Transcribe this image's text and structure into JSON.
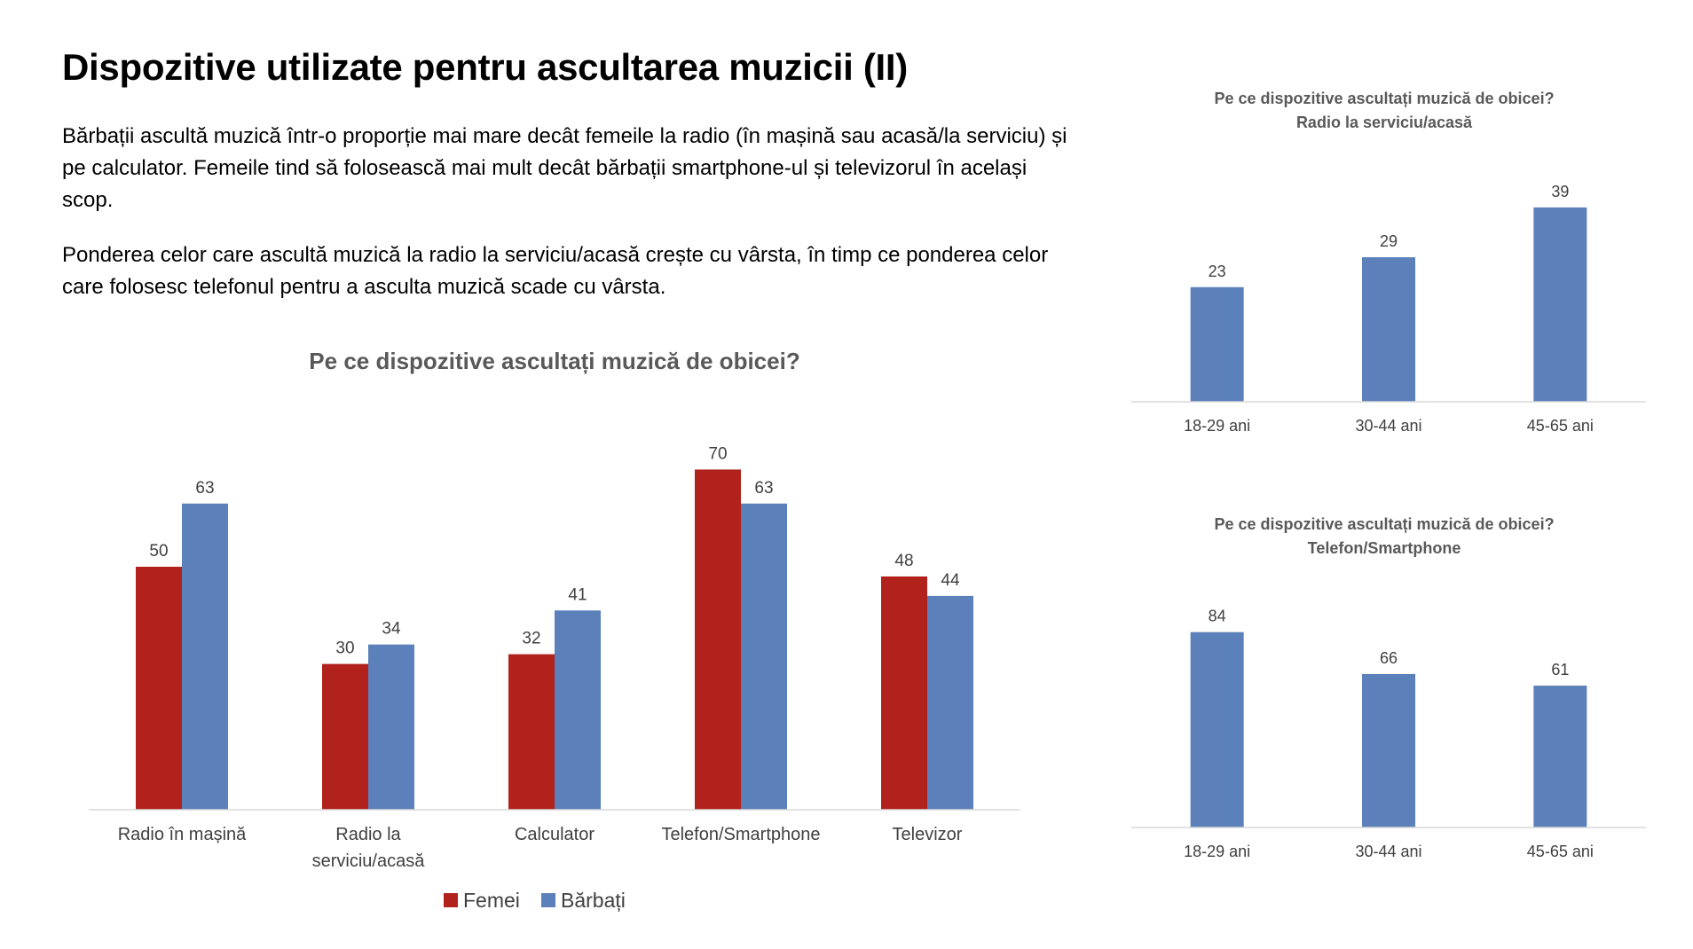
{
  "slide": {
    "title": "Dispozitive utilizate pentru ascultarea muzicii (II)",
    "paragraph1": "Bărbații ascultă muzică într-o proporție mai mare decât femeile la radio (în mașină sau acasă/la serviciu) și pe calculator. Femeile tind să folosească  mai mult decât bărbații smartphone-ul și televizorul în același scop.",
    "paragraph2": "Ponderea celor care ascultă muzică la radio la serviciu/acasă crește cu vârsta, în timp ce ponderea celor care folosesc telefonul pentru a asculta muzică scade cu vârsta."
  },
  "colors": {
    "femei": "#B0221B",
    "barbati": "#5B80BA",
    "title_gray": "#595959",
    "axis": "#D9D9D9",
    "label_text": "#404040"
  },
  "chart_data": [
    {
      "type": "bar",
      "title": "Pe ce dispozitive ascultați muzică de obicei?",
      "categories": [
        [
          "Radio în mașină"
        ],
        [
          "Radio la",
          "serviciu/acasă"
        ],
        [
          "Calculator"
        ],
        [
          "Telefon/Smartphone"
        ],
        [
          "Televizor"
        ]
      ],
      "series": [
        {
          "name": "Femei",
          "values": [
            50,
            30,
            32,
            70,
            48
          ],
          "color": "#B0221B"
        },
        {
          "name": "Bărbați",
          "values": [
            63,
            34,
            41,
            63,
            44
          ],
          "color": "#5B80BA"
        }
      ],
      "ylim": [
        0,
        75
      ],
      "legend": "bottom",
      "grid": false,
      "data_labels": true
    },
    {
      "type": "bar",
      "title": "Pe ce dispozitive ascultați muzică de obicei?",
      "subtitle": "Radio la serviciu/acasă",
      "categories": [
        "18-29 ani",
        "30-44 ani",
        "45-65 ani"
      ],
      "values": [
        23,
        29,
        39
      ],
      "color": "#5B80BA",
      "ylim": [
        0,
        42
      ],
      "grid": false,
      "data_labels": true
    },
    {
      "type": "bar",
      "title": "Pe ce dispozitive ascultați muzică de obicei?",
      "subtitle": "Telefon/Smartphone",
      "categories": [
        "18-29 ani",
        "30-44 ani",
        "45-65 ani"
      ],
      "values": [
        84,
        66,
        61
      ],
      "color": "#5B80BA",
      "ylim": [
        0,
        90
      ],
      "grid": false,
      "data_labels": true
    }
  ]
}
